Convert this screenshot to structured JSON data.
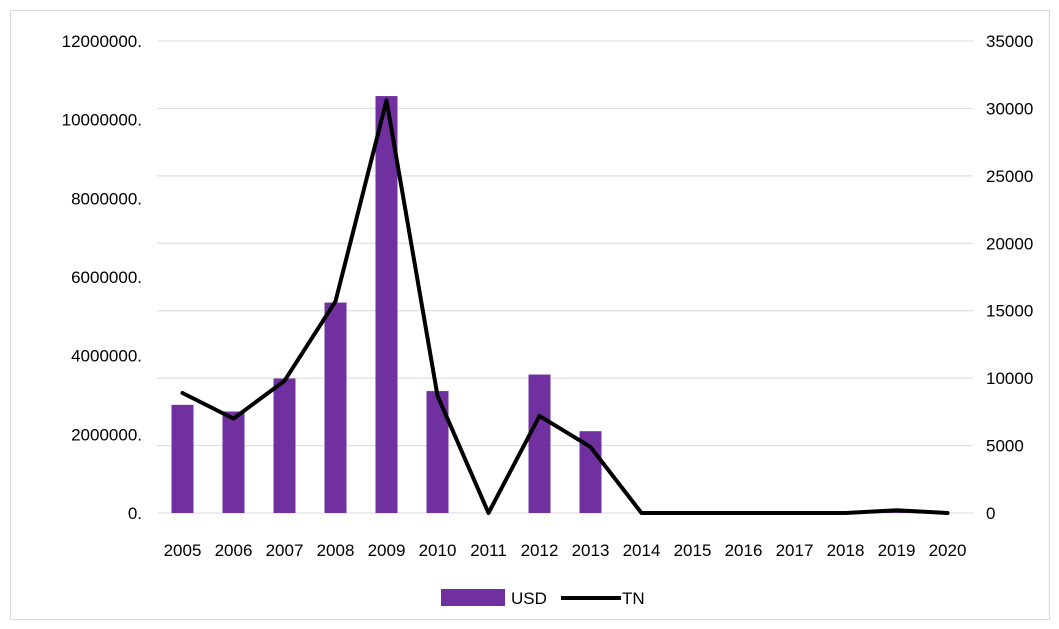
{
  "chart_data": {
    "type": "bar",
    "categories": [
      "2005",
      "2006",
      "2007",
      "2008",
      "2009",
      "2010",
      "2011",
      "2012",
      "2013",
      "2014",
      "2015",
      "2016",
      "2017",
      "2018",
      "2019",
      "2020"
    ],
    "series": [
      {
        "name": "USD",
        "type": "bar",
        "axis": "left",
        "color": "#7030a0",
        "values": [
          2750000,
          2580000,
          3420000,
          5350000,
          10600000,
          3100000,
          0,
          3520000,
          2080000,
          0,
          0,
          0,
          0,
          0,
          90000,
          0
        ]
      },
      {
        "name": "TN",
        "type": "line",
        "axis": "right",
        "color": "#000000",
        "values": [
          8900,
          7000,
          9800,
          15700,
          30600,
          8700,
          0,
          7200,
          4900,
          0,
          0,
          0,
          0,
          0,
          200,
          0
        ]
      }
    ],
    "left_axis": {
      "ylim": [
        0,
        12000000
      ],
      "ticks": [
        "0.",
        "2000000.",
        "4000000.",
        "6000000.",
        "8000000.",
        "10000000.",
        "12000000."
      ]
    },
    "right_axis": {
      "ylim": [
        0,
        35000
      ],
      "ticks": [
        "0",
        "5000",
        "10000",
        "15000",
        "20000",
        "25000",
        "30000",
        "35000"
      ]
    },
    "grid": true,
    "legend_position": "bottom"
  }
}
